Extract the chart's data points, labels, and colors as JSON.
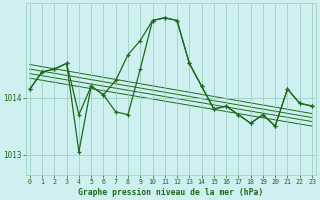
{
  "title": "Graphe pression niveau de la mer (hPa)",
  "background_color": "#cff0f0",
  "plot_bg_color": "#cff0f0",
  "grid_color": "#99ccbb",
  "line_color": "#1a6b1a",
  "xlim": [
    -0.3,
    23.3
  ],
  "ylim": [
    1012.65,
    1015.65
  ],
  "yticks": [
    1013,
    1014
  ],
  "xticks": [
    0,
    1,
    2,
    3,
    4,
    5,
    6,
    7,
    8,
    9,
    10,
    11,
    12,
    13,
    14,
    15,
    16,
    17,
    18,
    19,
    20,
    21,
    22,
    23
  ],
  "series1_x": [
    0,
    1,
    2,
    3,
    4,
    5,
    6,
    7,
    8,
    9,
    10,
    11,
    12,
    13,
    14,
    15,
    16,
    17,
    18,
    19,
    20,
    21,
    22,
    23
  ],
  "series1_y": [
    1014.15,
    1014.45,
    1014.5,
    1014.6,
    1013.7,
    1014.2,
    1014.05,
    1014.3,
    1014.75,
    1015.0,
    1015.35,
    1015.4,
    1015.35,
    1014.6,
    1014.2,
    1013.8,
    1013.85,
    1013.7,
    1013.55,
    1013.7,
    1013.5,
    1014.15,
    1013.9,
    1013.85
  ],
  "series2_x": [
    0,
    1,
    2,
    3,
    4,
    5,
    6,
    7,
    8,
    9,
    10,
    11,
    12,
    13,
    14,
    15,
    16,
    17,
    18,
    19,
    20,
    21,
    22,
    23
  ],
  "series2_y": [
    1014.15,
    1014.45,
    1014.5,
    1014.6,
    1013.05,
    1014.2,
    1014.05,
    1013.75,
    1013.7,
    1014.5,
    1015.35,
    1015.4,
    1015.35,
    1014.6,
    1014.2,
    1013.8,
    1013.85,
    1013.7,
    1013.55,
    1013.7,
    1013.5,
    1014.15,
    1013.9,
    1013.85
  ],
  "reg_lines": [
    {
      "x": [
        0,
        23
      ],
      "y": [
        1014.58,
        1013.72
      ]
    },
    {
      "x": [
        0,
        23
      ],
      "y": [
        1014.5,
        1013.65
      ]
    },
    {
      "x": [
        0,
        23
      ],
      "y": [
        1014.42,
        1013.58
      ]
    },
    {
      "x": [
        0,
        23
      ],
      "y": [
        1014.34,
        1013.5
      ]
    }
  ]
}
